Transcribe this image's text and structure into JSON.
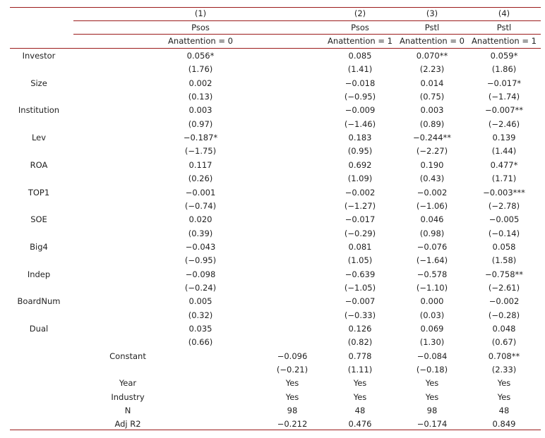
{
  "header": {
    "col_numbers": [
      "(1)",
      "(2)",
      "(3)",
      "(4)"
    ],
    "dep_vars": [
      "Psos",
      "Psos",
      "Pstl",
      "Pstl"
    ],
    "conditions": [
      "Anattention = 0",
      "Anattention = 1",
      "Anattention = 0",
      "Anattention = 1"
    ]
  },
  "rows": [
    {
      "label": "Investor",
      "coef": [
        "0.056*",
        "0.085",
        "0.070**",
        "0.059*"
      ],
      "t": [
        "(1.76)",
        "(1.41)",
        "(2.23)",
        "(1.86)"
      ]
    },
    {
      "label": "Size",
      "coef": [
        "0.002",
        "−0.018",
        "0.014",
        "−0.017*"
      ],
      "t": [
        "(0.13)",
        "(−0.95)",
        "(0.75)",
        "(−1.74)"
      ]
    },
    {
      "label": "Institution",
      "coef": [
        "0.003",
        "−0.009",
        "0.003",
        "−0.007**"
      ],
      "t": [
        "(0.97)",
        "(−1.46)",
        "(0.89)",
        "(−2.46)"
      ]
    },
    {
      "label": "Lev",
      "coef": [
        "−0.187*",
        "0.183",
        "−0.244**",
        "0.139"
      ],
      "t": [
        "(−1.75)",
        "(0.95)",
        "(−2.27)",
        "(1.44)"
      ]
    },
    {
      "label": "ROA",
      "coef": [
        "0.117",
        "0.692",
        "0.190",
        "0.477*"
      ],
      "t": [
        "(0.26)",
        "(1.09)",
        "(0.43)",
        "(1.71)"
      ]
    },
    {
      "label": "TOP1",
      "coef": [
        "−0.001",
        "−0.002",
        "−0.002",
        "−0.003***"
      ],
      "t": [
        "(−0.74)",
        "(−1.27)",
        "(−1.06)",
        "(−2.78)"
      ]
    },
    {
      "label": "SOE",
      "coef": [
        "0.020",
        "−0.017",
        "0.046",
        "−0.005"
      ],
      "t": [
        "(0.39)",
        "(−0.29)",
        "(0.98)",
        "(−0.14)"
      ]
    },
    {
      "label": "Big4",
      "coef": [
        "−0.043",
        "0.081",
        "−0.076",
        "0.058"
      ],
      "t": [
        "(−0.95)",
        "(1.05)",
        "(−1.64)",
        "(1.58)"
      ]
    },
    {
      "label": "Indep",
      "coef": [
        "−0.098",
        "−0.639",
        "−0.578",
        "−0.758**"
      ],
      "t": [
        "(−0.24)",
        "(−1.05)",
        "(−1.10)",
        "(−2.61)"
      ]
    },
    {
      "label": "BoardNum",
      "coef": [
        "0.005",
        "−0.007",
        "0.000",
        "−0.002"
      ],
      "t": [
        "(0.32)",
        "(−0.33)",
        "(0.03)",
        "(−0.28)"
      ]
    },
    {
      "label": "Dual",
      "coef": [
        "0.035",
        "0.126",
        "0.069",
        "0.048"
      ],
      "t": [
        "(0.66)",
        "(0.82)",
        "(1.30)",
        "(0.67)"
      ]
    }
  ],
  "constant": {
    "label": "Constant",
    "coef": [
      "−0.096",
      "0.778",
      "−0.084",
      "0.708**"
    ],
    "t": [
      "(−0.21)",
      "(1.11)",
      "(−0.18)",
      "(2.33)"
    ]
  },
  "footer": [
    {
      "label": "Year",
      "vals": [
        "Yes",
        "Yes",
        "Yes",
        "Yes"
      ]
    },
    {
      "label": "Industry",
      "vals": [
        "Yes",
        "Yes",
        "Yes",
        "Yes"
      ]
    },
    {
      "label": "N",
      "vals": [
        "98",
        "48",
        "98",
        "48"
      ]
    },
    {
      "label": "Adj R2",
      "vals": [
        "−0.212",
        "0.476",
        "−0.174",
        "0.849"
      ]
    }
  ],
  "colors": {
    "rule": "#9b1b1b",
    "text": "#222222"
  }
}
